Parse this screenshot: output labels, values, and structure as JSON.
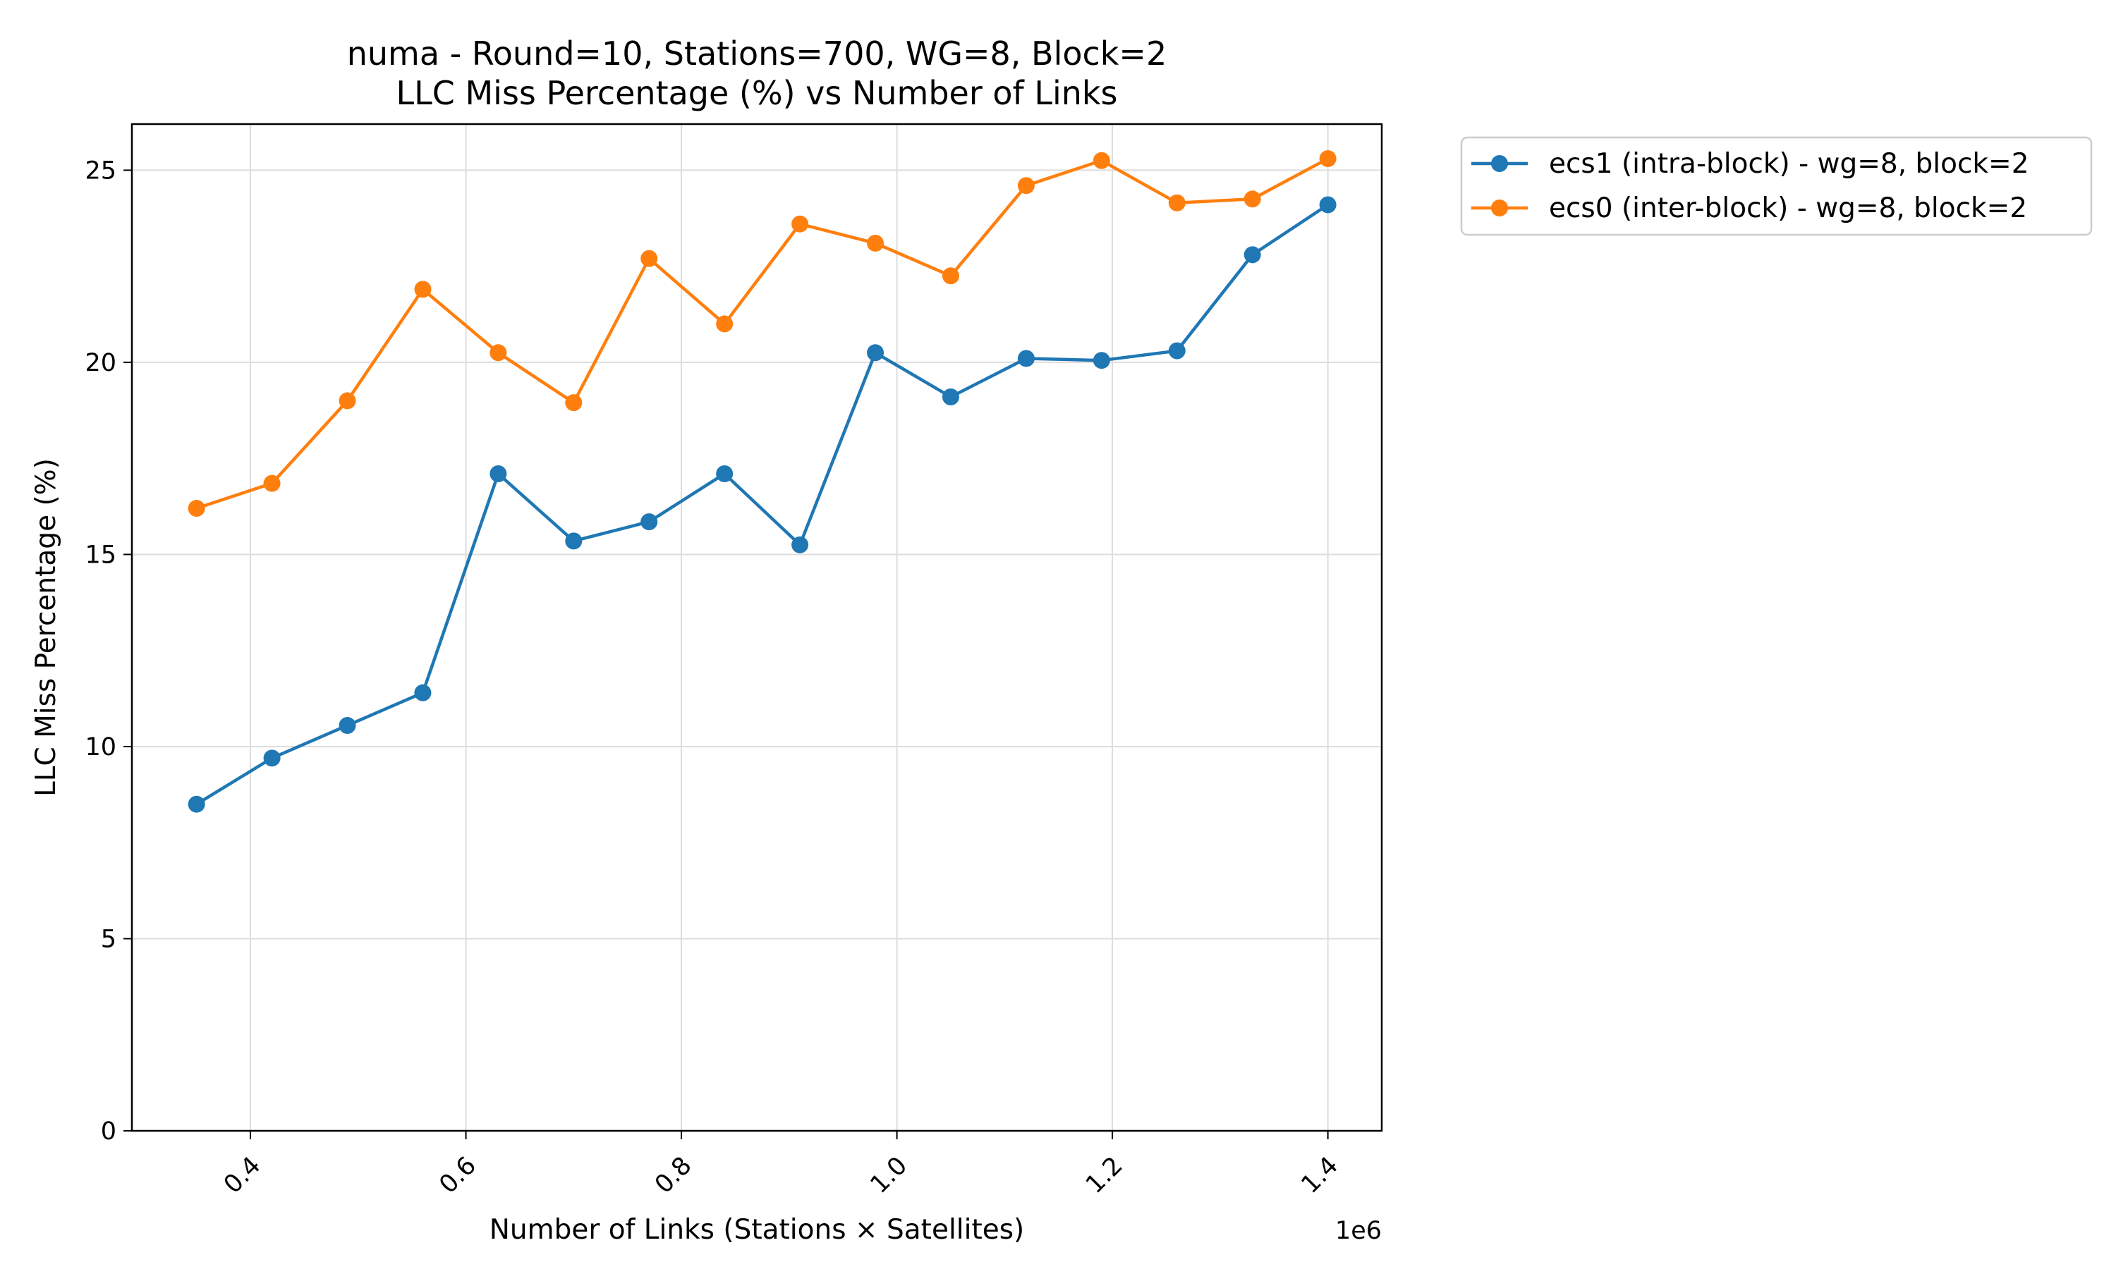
{
  "chart_data": {
    "type": "line",
    "title": "numa - Round=10, Stations=700, WG=8, Block=2",
    "subtitle": "LLC Miss Percentage (%) vs Number of Links",
    "xlabel": "Number of Links (Stations × Satellites)",
    "ylabel": "LLC Miss Percentage (%)",
    "x_offset_label": "1e6",
    "x_scale_factor": 1000000,
    "xlim": [
      0.29,
      1.45
    ],
    "ylim": [
      0,
      26.2
    ],
    "x_ticks": [
      0.4,
      0.6,
      0.8,
      1.0,
      1.2,
      1.4
    ],
    "x_tick_labels": [
      "0.4",
      "0.6",
      "0.8",
      "1.0",
      "1.2",
      "1.4"
    ],
    "y_ticks": [
      0,
      5,
      10,
      15,
      20,
      25
    ],
    "y_tick_labels": [
      "0",
      "5",
      "10",
      "15",
      "20",
      "25"
    ],
    "grid": true,
    "legend_position": "outside-top-right",
    "x": [
      0.35,
      0.42,
      0.49,
      0.56,
      0.63,
      0.7,
      0.77,
      0.84,
      0.91,
      0.98,
      1.05,
      1.12,
      1.19,
      1.26,
      1.33,
      1.4
    ],
    "series": [
      {
        "name": "ecs1 (intra-block) - wg=8, block=2",
        "color": "#1f77b4",
        "values": [
          8.5,
          9.7,
          10.55,
          11.4,
          17.1,
          15.35,
          15.85,
          17.1,
          15.25,
          20.25,
          19.1,
          20.1,
          20.05,
          20.3,
          22.8,
          24.1
        ]
      },
      {
        "name": "ecs0 (inter-block) - wg=8, block=2",
        "color": "#ff7f0e",
        "values": [
          16.2,
          16.85,
          19.0,
          21.9,
          20.25,
          18.95,
          22.7,
          21.0,
          23.6,
          23.1,
          22.25,
          24.6,
          25.25,
          24.15,
          24.25,
          25.3
        ]
      }
    ]
  }
}
